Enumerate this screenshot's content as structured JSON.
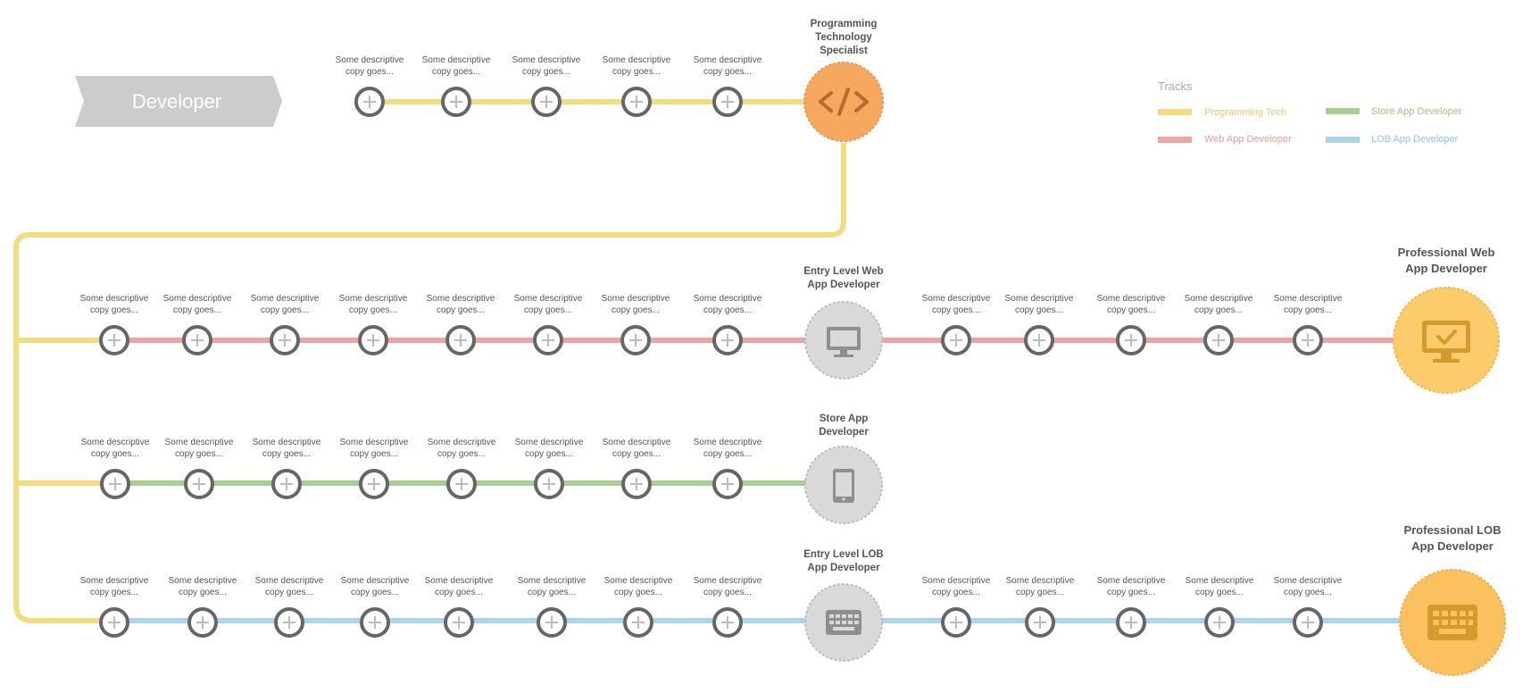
{
  "banner": {
    "label": "Developer"
  },
  "node_label": {
    "line1": "Some descriptive",
    "line2": "copy goes..."
  },
  "legend": {
    "title": "Tracks",
    "items": [
      {
        "label": "Programming Tech",
        "color": "#f2dc7e",
        "text_color": "#e8c770"
      },
      {
        "label": "Store App Developer",
        "color": "#a6d090",
        "text_color": "#98c884"
      },
      {
        "label": "Web App Developer",
        "color": "#f0a3a3",
        "text_color": "#ec9a9a"
      },
      {
        "label": "LOB App Developer",
        "color": "#a9d6ea",
        "text_color": "#8cc6e2"
      }
    ]
  },
  "milestones": {
    "programming_tech": {
      "lines": [
        "Programming",
        "Technology",
        "Specialist"
      ],
      "icon": "code-icon",
      "color": "#f5a85e"
    },
    "entry_web": {
      "lines": [
        "Entry Level Web",
        "App Developer"
      ],
      "icon": "monitor-icon",
      "color": "#d9d9d9"
    },
    "store_app": {
      "lines": [
        "Store App",
        "Developer"
      ],
      "icon": "tablet-icon",
      "color": "#d9d9d9"
    },
    "entry_lob": {
      "lines": [
        "Entry Level LOB",
        "App Developer"
      ],
      "icon": "keyboard-icon",
      "color": "#d9d9d9"
    },
    "pro_web": {
      "lines": [
        "Professional Web",
        "App Developer"
      ],
      "icon": "monitor-check-icon",
      "color": "#fbcb6c"
    },
    "pro_lob": {
      "lines": [
        "Professional LOB",
        "App Developer"
      ],
      "icon": "keyboard-icon",
      "color": "#fbc15e"
    }
  },
  "tracks": {
    "programming_tech": {
      "node_count": 5,
      "color": "#f2dc7e"
    },
    "web_app": {
      "node_count": 13,
      "color": "#f0a3a3"
    },
    "store_app": {
      "node_count": 8,
      "color": "#a6d090"
    },
    "lob_app": {
      "node_count": 13,
      "color": "#a9d6ea"
    }
  }
}
